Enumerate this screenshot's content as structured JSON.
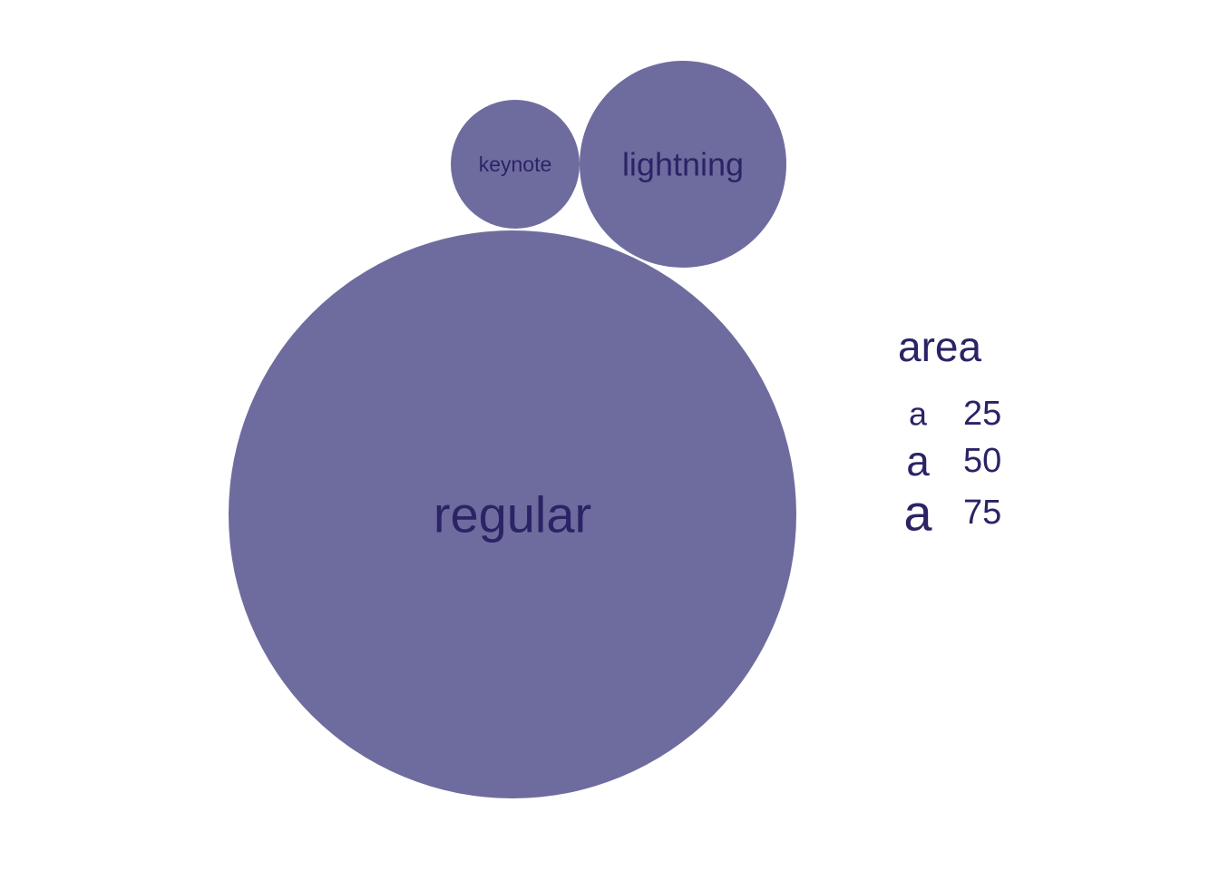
{
  "chart_data": {
    "type": "bubble",
    "fill_color": "#6e6c9e",
    "text_color": "#2a2466",
    "bubbles": [
      {
        "label": "keynote",
        "area": 12
      },
      {
        "label": "lightning",
        "area": 31
      },
      {
        "label": "regular",
        "area": 230
      }
    ],
    "legend": {
      "title": "area",
      "symbol": "a",
      "entries": [
        {
          "value": 25,
          "label": "25"
        },
        {
          "value": 50,
          "label": "50"
        },
        {
          "value": 75,
          "label": "75"
        }
      ]
    }
  }
}
